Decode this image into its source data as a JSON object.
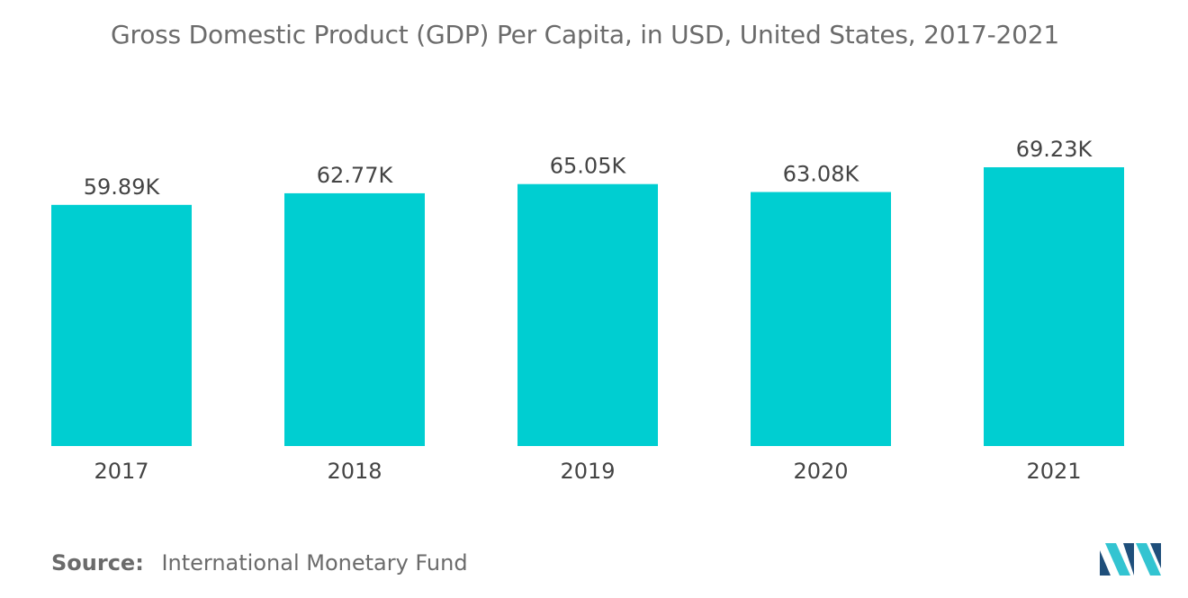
{
  "title": "Gross Domestic Product (GDP) Per Capita, in USD, United States, 2017-2021",
  "source": {
    "label": "Source:",
    "text": "International Monetary Fund"
  },
  "colors": {
    "bar": "#00CED1",
    "text": "#444444",
    "muted": "#6b6b6b",
    "logo_dark": "#1f4f7b",
    "logo_light": "#33c4d1"
  },
  "chart_data": {
    "type": "bar",
    "categories": [
      "2017",
      "2018",
      "2019",
      "2020",
      "2021"
    ],
    "values": [
      59.89,
      62.77,
      65.05,
      63.08,
      69.23
    ],
    "data_labels": [
      "59.89K",
      "62.77K",
      "65.05K",
      "63.08K",
      "69.23K"
    ],
    "ylim": [
      0,
      69.23
    ],
    "grid": false,
    "legend": "none"
  }
}
